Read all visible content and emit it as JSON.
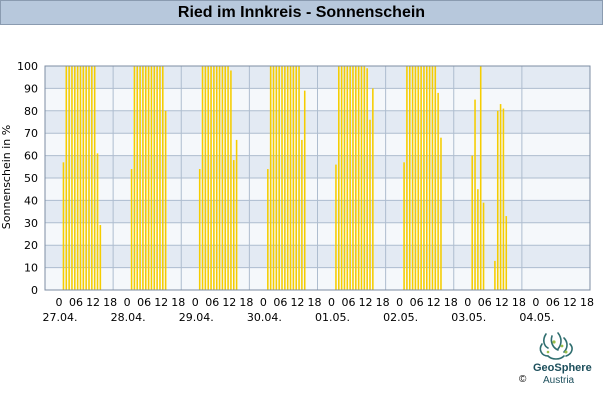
{
  "header": {
    "title": "Ried im Innkreis - Sonnenschein"
  },
  "footer": {
    "brand": "GeoSphere",
    "brand_sub": "Austria",
    "copyright": "©"
  },
  "chart_data": {
    "type": "bar",
    "title": "Ried im Innkreis - Sonnenschein",
    "xlabel": "",
    "ylabel": "Sonnenschein in %",
    "ylim": [
      0,
      100
    ],
    "yticks": [
      0,
      10,
      20,
      30,
      40,
      50,
      60,
      70,
      80,
      90,
      100
    ],
    "grid": true,
    "xlim_hours": [
      0,
      192
    ],
    "hour_tick_labels": [
      "0",
      "06",
      "12",
      "18"
    ],
    "days": [
      {
        "label": "27.04.",
        "hours": [
          6,
          7,
          8,
          9,
          10,
          11,
          12,
          13,
          14,
          15,
          16,
          17,
          18,
          19
        ],
        "values": [
          57,
          100,
          100,
          100,
          100,
          100,
          100,
          100,
          100,
          100,
          100,
          100,
          61,
          29
        ]
      },
      {
        "label": "28.04.",
        "hours": [
          6,
          7,
          8,
          9,
          10,
          11,
          12,
          13,
          14,
          15,
          16,
          17,
          18,
          19
        ],
        "values": [
          54,
          100,
          100,
          100,
          100,
          100,
          100,
          100,
          100,
          100,
          100,
          100,
          80,
          0
        ]
      },
      {
        "label": "29.04.",
        "hours": [
          6,
          7,
          8,
          9,
          10,
          11,
          12,
          13,
          14,
          15,
          16,
          17,
          18,
          19
        ],
        "values": [
          54,
          100,
          100,
          100,
          100,
          100,
          100,
          100,
          100,
          100,
          100,
          98,
          58,
          67
        ]
      },
      {
        "label": "30.04.",
        "hours": [
          6,
          7,
          8,
          9,
          10,
          11,
          12,
          13,
          14,
          15,
          16,
          17,
          18,
          19
        ],
        "values": [
          54,
          100,
          100,
          100,
          100,
          100,
          100,
          100,
          100,
          100,
          100,
          100,
          67,
          89
        ]
      },
      {
        "label": "01.05.",
        "hours": [
          6,
          7,
          8,
          9,
          10,
          11,
          12,
          13,
          14,
          15,
          16,
          17,
          18,
          19
        ],
        "values": [
          56,
          100,
          100,
          100,
          100,
          100,
          100,
          100,
          100,
          100,
          100,
          99,
          76,
          90
        ]
      },
      {
        "label": "02.05.",
        "hours": [
          6,
          7,
          8,
          9,
          10,
          11,
          12,
          13,
          14,
          15,
          16,
          17,
          18,
          19
        ],
        "values": [
          57,
          100,
          100,
          100,
          100,
          100,
          100,
          100,
          100,
          100,
          100,
          100,
          88,
          68
        ]
      },
      {
        "label": "03.05.",
        "hours": [
          6,
          7,
          8,
          9,
          10,
          11,
          12,
          13,
          14,
          15,
          16,
          17,
          18,
          19
        ],
        "values": [
          60,
          85,
          45,
          100,
          39,
          0,
          0,
          0,
          13,
          80,
          83,
          81,
          33,
          0
        ]
      },
      {
        "label": "04.05.",
        "hours": [],
        "values": []
      }
    ]
  },
  "colors": {
    "bar": "#f5cd00",
    "band_dark": "#e3eaf3",
    "band_light": "#f5f8fb",
    "grid": "#aebdcf"
  }
}
